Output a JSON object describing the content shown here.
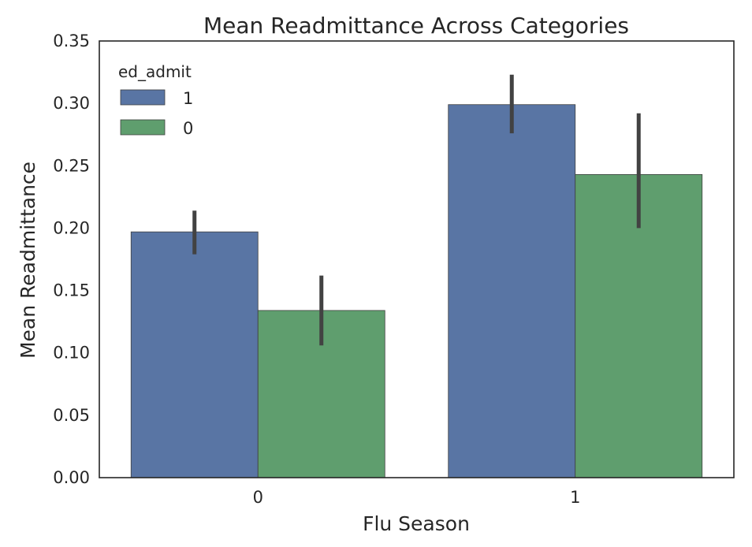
{
  "chart_data": {
    "type": "bar",
    "title": "Mean Readmittance Across Categories",
    "xlabel": "Flu Season",
    "ylabel": "Mean Readmittance",
    "categories": [
      "0",
      "1"
    ],
    "ylim": [
      0,
      0.35
    ],
    "yticks": [
      0.0,
      0.05,
      0.1,
      0.15,
      0.2,
      0.25,
      0.3,
      0.35
    ],
    "ytick_labels": [
      "0.00",
      "0.05",
      "0.10",
      "0.15",
      "0.20",
      "0.25",
      "0.30",
      "0.35"
    ],
    "grid": false,
    "legend": {
      "title": "ed_admit",
      "placement": "top-left"
    },
    "series": [
      {
        "name": "1",
        "color": "#5975a4",
        "values": [
          0.197,
          0.299
        ],
        "error_low": [
          0.179,
          0.276
        ],
        "error_high": [
          0.214,
          0.323
        ]
      },
      {
        "name": "0",
        "color": "#5f9e6e",
        "values": [
          0.134,
          0.243
        ],
        "error_low": [
          0.106,
          0.2
        ],
        "error_high": [
          0.162,
          0.292
        ]
      }
    ]
  }
}
